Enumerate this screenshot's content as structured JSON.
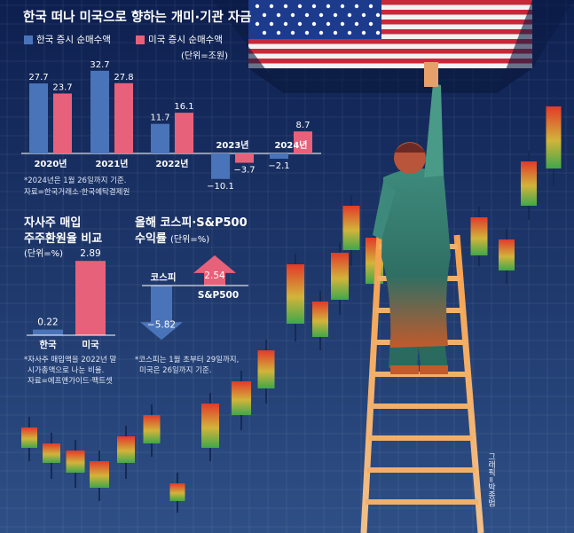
{
  "title": "한국 떠나 미국으로 향하는 개미·기관 자금",
  "colors": {
    "korea": "#4a74b9",
    "us": "#e8617a",
    "bg_top": "#0d1f4f",
    "bg_bottom": "#2e4f86",
    "text": "#ffffff",
    "candle_red": "#e23a2a",
    "candle_green": "#3fa84a"
  },
  "chart1": {
    "legend": {
      "korea": "한국 증시 순매수액",
      "us": "미국 증시 순매수액"
    },
    "unit": "(단위=조원)",
    "note": "*2024년은 1월 26일까지 기준.",
    "source": "자료=한국거래소·한국예탁결제원"
  },
  "chart2": {
    "title_line1": "자사주 매입",
    "title_line2": "주주환원율 비교",
    "unit": "(단위=%)",
    "note_line1": "*자사주 매입액을 2022년 말",
    "note_line2": "시가총액으로 나눈 비율.",
    "source": "자료=에프앤가이드·팩트셋"
  },
  "chart3": {
    "title_line1": "올해 코스피·S&P500",
    "title_line2": "수익률",
    "unit": "(단위=%)",
    "note_line1": "*코스피는 1월 초부터 29일까지,",
    "note_line2": "미국은 26일까지 기준."
  },
  "credit": "그래픽=박종범",
  "chart_data": [
    {
      "type": "bar",
      "title": "한국 떠나 미국으로 향하는 개미·기관 자금",
      "categories": [
        "2020년",
        "2021년",
        "2022년",
        "2023년",
        "2024년"
      ],
      "series": [
        {
          "name": "한국 증시 순매수액",
          "values": [
            27.7,
            32.7,
            11.7,
            -10.1,
            -2.1
          ],
          "labels": [
            "27.7",
            "32.7",
            "11.7",
            "−10.1",
            "−2.1"
          ]
        },
        {
          "name": "미국 증시 순매수액",
          "values": [
            23.7,
            27.8,
            16.1,
            -3.7,
            8.7
          ],
          "labels": [
            "23.7",
            "27.8",
            "16.1",
            "−3.7",
            "8.7"
          ]
        }
      ],
      "unit": "조원",
      "legend": "top-left",
      "grid": false
    },
    {
      "type": "bar",
      "title": "자사주 매입 주주환원율 비교",
      "categories": [
        "한국",
        "미국"
      ],
      "values": [
        0.22,
        2.89
      ],
      "labels": [
        "0.22",
        "2.89"
      ],
      "unit": "%"
    },
    {
      "type": "bar",
      "title": "올해 코스피·S&P500 수익률",
      "categories": [
        "코스피",
        "S&P500"
      ],
      "values": [
        -5.82,
        2.54
      ],
      "labels": [
        "−5.82",
        "2.54"
      ],
      "unit": "%"
    }
  ]
}
